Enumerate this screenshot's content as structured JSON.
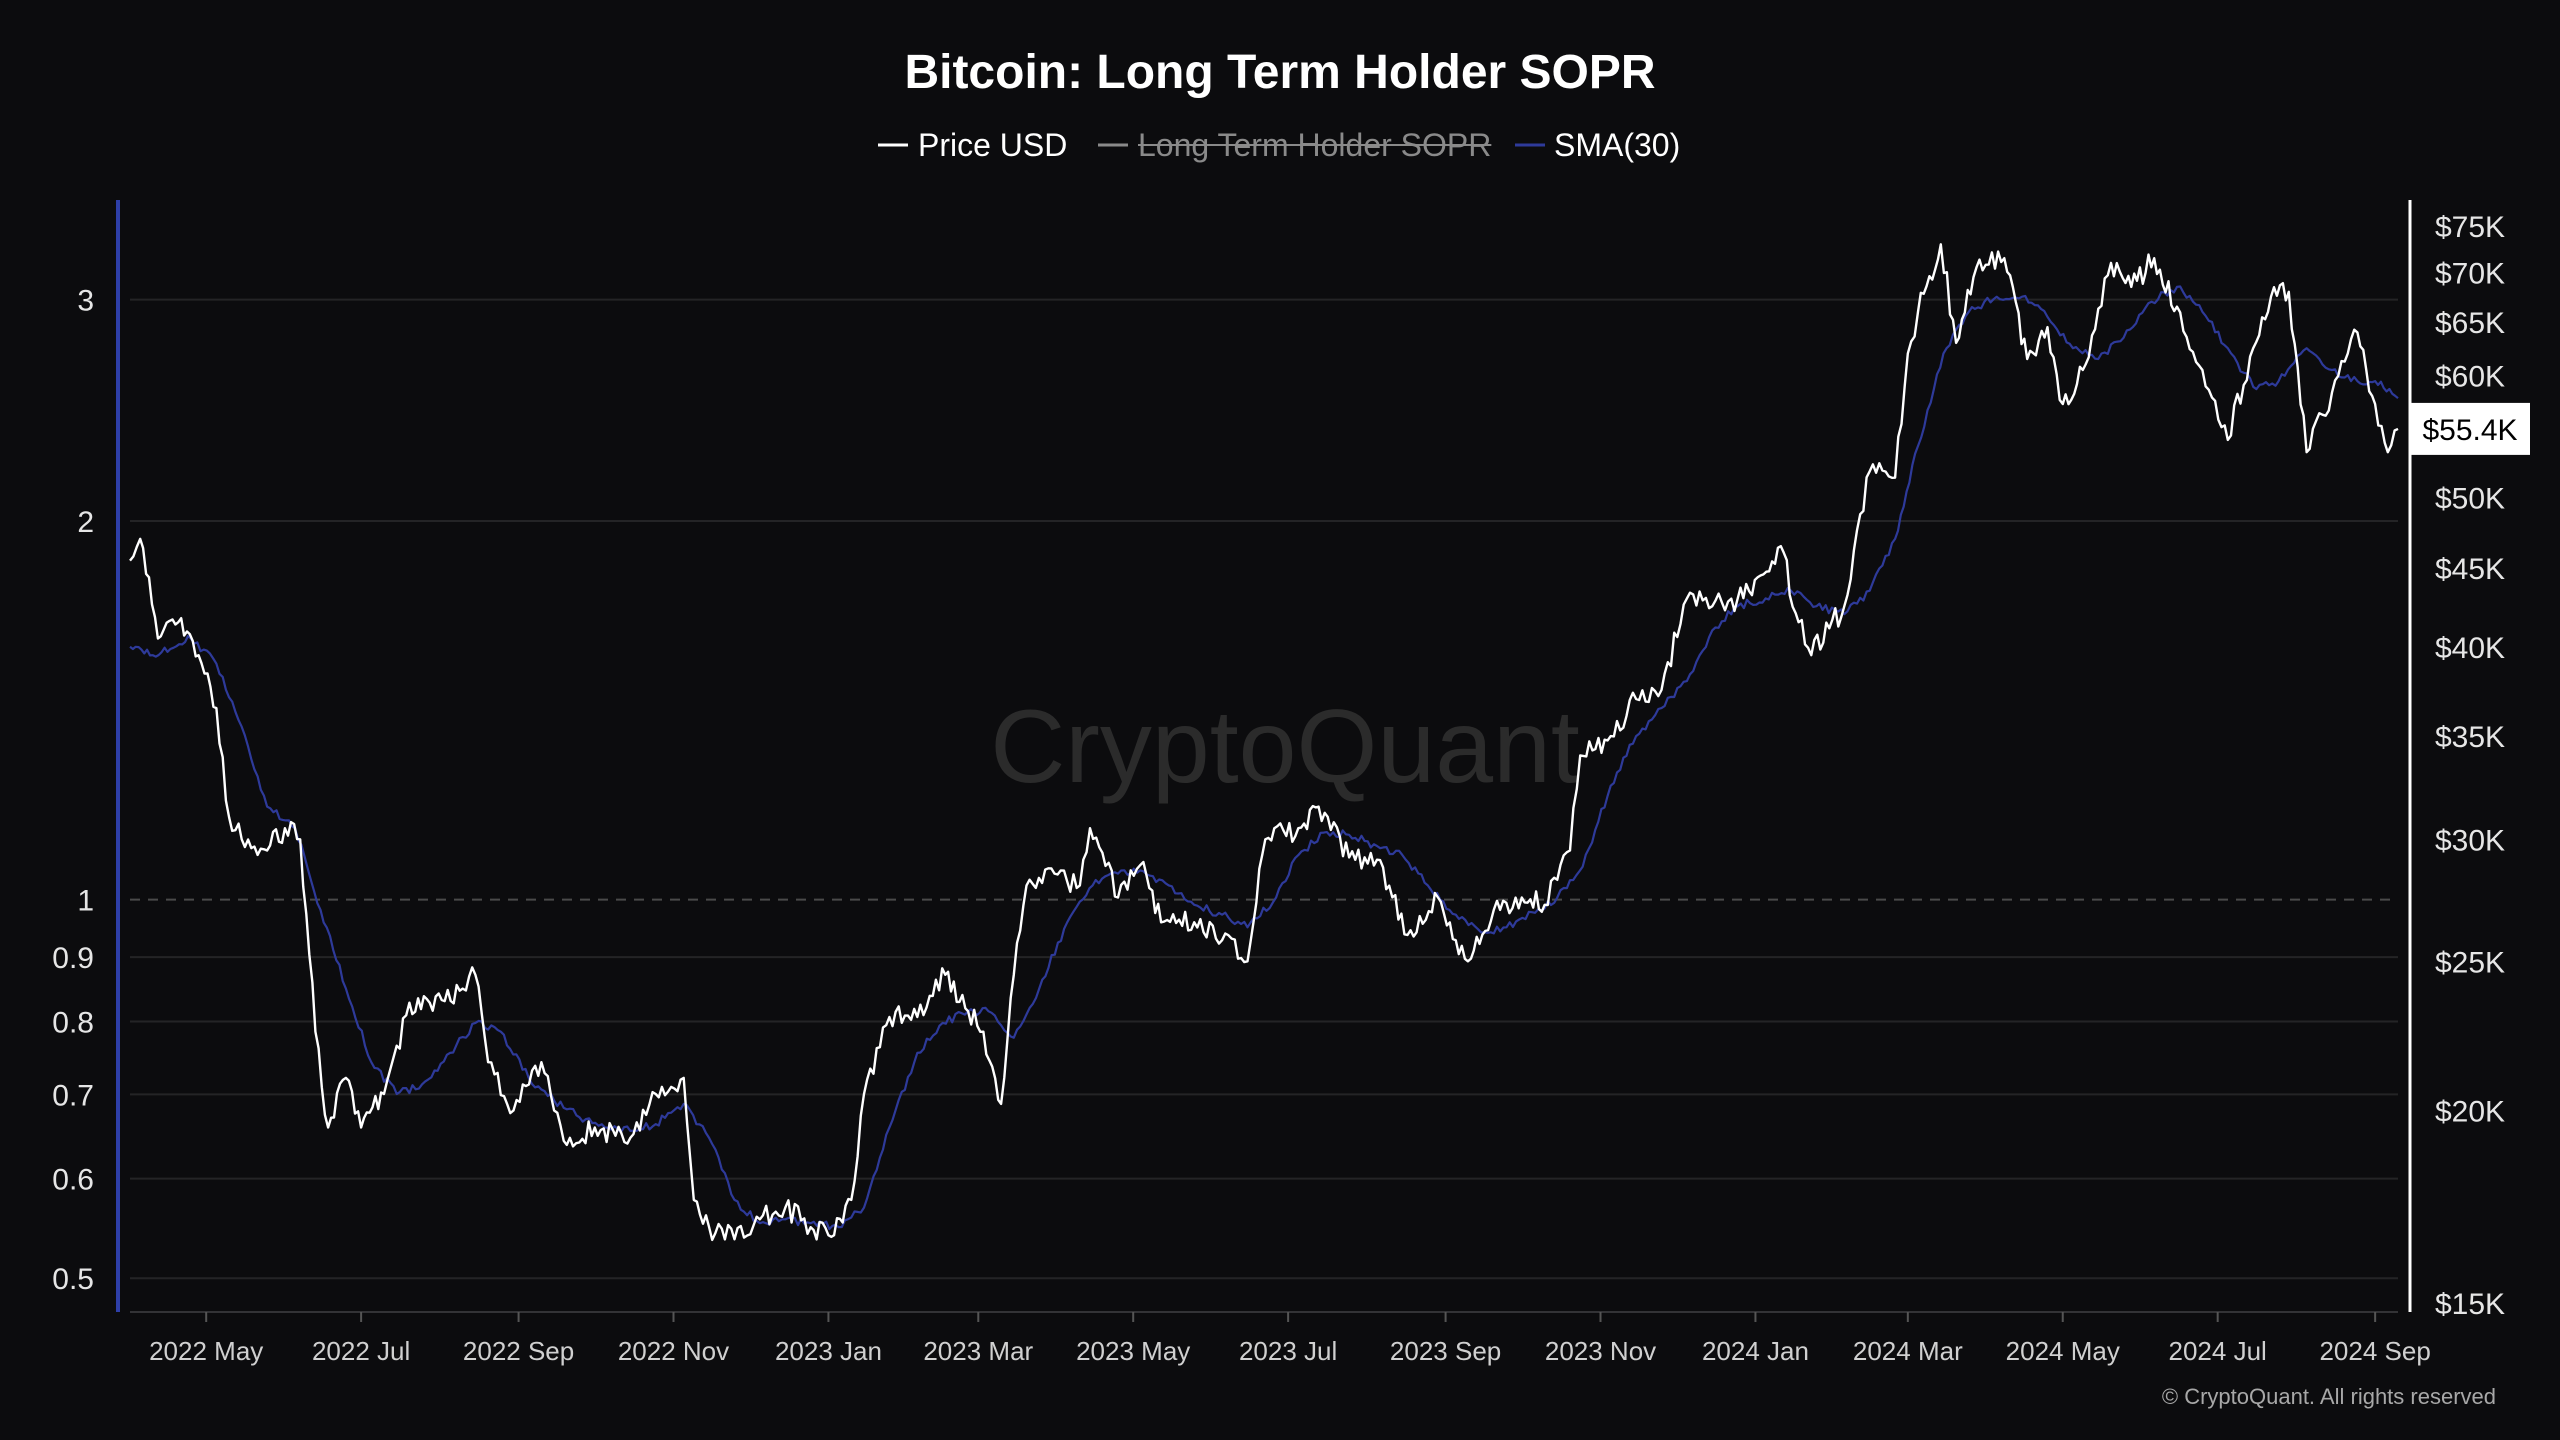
{
  "chart_data": {
    "type": "line",
    "title": "Bitcoin: Long Term Holder SOPR",
    "legend": [
      {
        "label": "Price USD",
        "color": "#ffffff",
        "enabled": true
      },
      {
        "label": "Long Term Holder SOPR",
        "color": "#8a8a8a",
        "enabled": false
      },
      {
        "label": "SMA(30)",
        "color": "#2e3a9a",
        "enabled": true
      }
    ],
    "legend_position": "top-center",
    "watermark": "CryptoQuant",
    "copyright": "© CryptoQuant. All rights reserved",
    "x_ticks": [
      "2022 May",
      "2022 Jul",
      "2022 Sep",
      "2022 Nov",
      "2023 Jan",
      "2023 Mar",
      "2023 May",
      "2023 Jul",
      "2023 Sep",
      "2023 Nov",
      "2024 Jan",
      "2024 Mar",
      "2024 May",
      "2024 Jul",
      "2024 Sep"
    ],
    "x_range": [
      "2022-04-01",
      "2024-09-10"
    ],
    "left_axis": {
      "scale": "log",
      "range": [
        0.47,
        3.6
      ],
      "ticks": [
        {
          "value": 3,
          "label": "3"
        },
        {
          "value": 2,
          "label": "2"
        },
        {
          "value": 1,
          "label": "1"
        },
        {
          "value": 0.9,
          "label": "0.9"
        },
        {
          "value": 0.8,
          "label": "0.8"
        },
        {
          "value": 0.7,
          "label": "0.7"
        },
        {
          "value": 0.6,
          "label": "0.6"
        },
        {
          "value": 0.5,
          "label": "0.5"
        }
      ],
      "reference_line": 1
    },
    "right_axis": {
      "scale": "log",
      "range": [
        14800,
        78000
      ],
      "ticks": [
        {
          "value": 75000,
          "label": "$75K"
        },
        {
          "value": 70000,
          "label": "$70K"
        },
        {
          "value": 65000,
          "label": "$65K"
        },
        {
          "value": 60000,
          "label": "$60K"
        },
        {
          "value": 50000,
          "label": "$50K"
        },
        {
          "value": 45000,
          "label": "$45K"
        },
        {
          "value": 40000,
          "label": "$40K"
        },
        {
          "value": 35000,
          "label": "$35K"
        },
        {
          "value": 30000,
          "label": "$30K"
        },
        {
          "value": 25000,
          "label": "$25K"
        },
        {
          "value": 20000,
          "label": "$20K"
        },
        {
          "value": 15000,
          "label": "$15K"
        }
      ],
      "current_value_label": "$55.4K"
    },
    "grid": true,
    "series": [
      {
        "name": "Price USD",
        "axis": "right",
        "color": "#ffffff",
        "points": [
          [
            "2022-04-01",
            45500
          ],
          [
            "2022-04-05",
            47000
          ],
          [
            "2022-04-12",
            40500
          ],
          [
            "2022-04-20",
            41500
          ],
          [
            "2022-04-28",
            39500
          ],
          [
            "2022-05-05",
            36500
          ],
          [
            "2022-05-10",
            31000
          ],
          [
            "2022-05-15",
            30000
          ],
          [
            "2022-05-25",
            29500
          ],
          [
            "2022-06-01",
            30500
          ],
          [
            "2022-06-07",
            30000
          ],
          [
            "2022-06-13",
            22500
          ],
          [
            "2022-06-18",
            19500
          ],
          [
            "2022-06-25",
            21000
          ],
          [
            "2022-07-01",
            19500
          ],
          [
            "2022-07-10",
            20500
          ],
          [
            "2022-07-20",
            23500
          ],
          [
            "2022-07-28",
            23500
          ],
          [
            "2022-08-10",
            24000
          ],
          [
            "2022-08-15",
            24500
          ],
          [
            "2022-08-20",
            21500
          ],
          [
            "2022-08-30",
            20000
          ],
          [
            "2022-09-10",
            21500
          ],
          [
            "2022-09-15",
            20000
          ],
          [
            "2022-09-20",
            19000
          ],
          [
            "2022-10-01",
            19500
          ],
          [
            "2022-10-15",
            19200
          ],
          [
            "2022-10-25",
            20500
          ],
          [
            "2022-11-05",
            21000
          ],
          [
            "2022-11-09",
            17500
          ],
          [
            "2022-11-15",
            16800
          ],
          [
            "2022-11-25",
            16500
          ],
          [
            "2022-12-05",
            17000
          ],
          [
            "2022-12-15",
            17300
          ],
          [
            "2022-12-25",
            16800
          ],
          [
            "2023-01-01",
            16600
          ],
          [
            "2023-01-10",
            17500
          ],
          [
            "2023-01-15",
            20500
          ],
          [
            "2023-01-25",
            23000
          ],
          [
            "2023-02-05",
            23000
          ],
          [
            "2023-02-16",
            24500
          ],
          [
            "2023-02-25",
            23200
          ],
          [
            "2023-03-03",
            22500
          ],
          [
            "2023-03-10",
            20200
          ],
          [
            "2023-03-15",
            24500
          ],
          [
            "2023-03-20",
            28000
          ],
          [
            "2023-03-31",
            28500
          ],
          [
            "2023-04-10",
            28000
          ],
          [
            "2023-04-14",
            30500
          ],
          [
            "2023-04-25",
            27500
          ],
          [
            "2023-05-05",
            29000
          ],
          [
            "2023-05-12",
            26500
          ],
          [
            "2023-05-25",
            26500
          ],
          [
            "2023-06-05",
            25800
          ],
          [
            "2023-06-15",
            25000
          ],
          [
            "2023-06-22",
            30000
          ],
          [
            "2023-07-05",
            30500
          ],
          [
            "2023-07-13",
            31500
          ],
          [
            "2023-07-25",
            29200
          ],
          [
            "2023-08-05",
            29100
          ],
          [
            "2023-08-17",
            26000
          ],
          [
            "2023-08-29",
            27500
          ],
          [
            "2023-09-05",
            25800
          ],
          [
            "2023-09-11",
            25100
          ],
          [
            "2023-09-20",
            27000
          ],
          [
            "2023-10-01",
            27500
          ],
          [
            "2023-10-10",
            27200
          ],
          [
            "2023-10-20",
            29500
          ],
          [
            "2023-10-24",
            34000
          ],
          [
            "2023-11-05",
            35000
          ],
          [
            "2023-11-15",
            37000
          ],
          [
            "2023-11-25",
            37500
          ],
          [
            "2023-12-05",
            43000
          ],
          [
            "2023-12-15",
            42500
          ],
          [
            "2023-12-25",
            43000
          ],
          [
            "2024-01-03",
            44500
          ],
          [
            "2024-01-11",
            46500
          ],
          [
            "2024-01-18",
            41500
          ],
          [
            "2024-01-23",
            39500
          ],
          [
            "2024-02-05",
            42500
          ],
          [
            "2024-02-15",
            52000
          ],
          [
            "2024-02-25",
            51500
          ],
          [
            "2024-03-01",
            62000
          ],
          [
            "2024-03-05",
            66000
          ],
          [
            "2024-03-14",
            73000
          ],
          [
            "2024-03-20",
            63000
          ],
          [
            "2024-03-28",
            70500
          ],
          [
            "2024-04-08",
            71500
          ],
          [
            "2024-04-17",
            61500
          ],
          [
            "2024-04-25",
            64500
          ],
          [
            "2024-05-01",
            57500
          ],
          [
            "2024-05-10",
            61000
          ],
          [
            "2024-05-20",
            71000
          ],
          [
            "2024-05-28",
            68500
          ],
          [
            "2024-06-06",
            71500
          ],
          [
            "2024-06-15",
            66500
          ],
          [
            "2024-06-25",
            60500
          ],
          [
            "2024-07-05",
            54500
          ],
          [
            "2024-07-15",
            62500
          ],
          [
            "2024-07-22",
            67500
          ],
          [
            "2024-07-29",
            68000
          ],
          [
            "2024-08-05",
            53500
          ],
          [
            "2024-08-15",
            58500
          ],
          [
            "2024-08-25",
            64000
          ],
          [
            "2024-09-01",
            57500
          ],
          [
            "2024-09-06",
            53500
          ],
          [
            "2024-09-10",
            55400
          ]
        ]
      },
      {
        "name": "SMA(30)",
        "axis": "right",
        "color": "#2e3a9a",
        "points": [
          [
            "2022-04-01",
            40000
          ],
          [
            "2022-04-10",
            39500
          ],
          [
            "2022-04-25",
            40500
          ],
          [
            "2022-05-05",
            39000
          ],
          [
            "2022-05-15",
            35500
          ],
          [
            "2022-05-25",
            31500
          ],
          [
            "2022-06-05",
            30500
          ],
          [
            "2022-06-15",
            27000
          ],
          [
            "2022-06-25",
            24000
          ],
          [
            "2022-07-05",
            21500
          ],
          [
            "2022-07-15",
            20500
          ],
          [
            "2022-07-25",
            20800
          ],
          [
            "2022-08-05",
            21800
          ],
          [
            "2022-08-15",
            22800
          ],
          [
            "2022-08-25",
            22500
          ],
          [
            "2022-09-05",
            21000
          ],
          [
            "2022-09-15",
            20300
          ],
          [
            "2022-09-25",
            19800
          ],
          [
            "2022-10-05",
            19500
          ],
          [
            "2022-10-15",
            19400
          ],
          [
            "2022-10-25",
            19600
          ],
          [
            "2022-11-05",
            20200
          ],
          [
            "2022-11-15",
            19200
          ],
          [
            "2022-11-25",
            17500
          ],
          [
            "2022-12-05",
            16900
          ],
          [
            "2022-12-15",
            17000
          ],
          [
            "2022-12-25",
            16900
          ],
          [
            "2023-01-05",
            16800
          ],
          [
            "2023-01-15",
            17300
          ],
          [
            "2023-01-25",
            19500
          ],
          [
            "2023-02-05",
            21800
          ],
          [
            "2023-02-15",
            22800
          ],
          [
            "2023-02-25",
            23200
          ],
          [
            "2023-03-05",
            23200
          ],
          [
            "2023-03-15",
            22300
          ],
          [
            "2023-03-25",
            24000
          ],
          [
            "2023-04-05",
            26500
          ],
          [
            "2023-04-15",
            28000
          ],
          [
            "2023-04-25",
            28500
          ],
          [
            "2023-05-05",
            28600
          ],
          [
            "2023-05-15",
            28000
          ],
          [
            "2023-05-25",
            27200
          ],
          [
            "2023-06-05",
            26800
          ],
          [
            "2023-06-15",
            26300
          ],
          [
            "2023-06-25",
            27300
          ],
          [
            "2023-07-05",
            29300
          ],
          [
            "2023-07-15",
            30300
          ],
          [
            "2023-07-25",
            30200
          ],
          [
            "2023-08-05",
            29700
          ],
          [
            "2023-08-15",
            29300
          ],
          [
            "2023-08-25",
            28000
          ],
          [
            "2023-09-05",
            26800
          ],
          [
            "2023-09-15",
            26100
          ],
          [
            "2023-09-25",
            26300
          ],
          [
            "2023-10-05",
            26900
          ],
          [
            "2023-10-15",
            27500
          ],
          [
            "2023-10-25",
            28800
          ],
          [
            "2023-11-05",
            32500
          ],
          [
            "2023-11-15",
            35000
          ],
          [
            "2023-11-25",
            36500
          ],
          [
            "2023-12-05",
            38000
          ],
          [
            "2023-12-15",
            41000
          ],
          [
            "2023-12-25",
            42500
          ],
          [
            "2024-01-05",
            43000
          ],
          [
            "2024-01-15",
            43500
          ],
          [
            "2024-01-25",
            42500
          ],
          [
            "2024-02-05",
            42000
          ],
          [
            "2024-02-15",
            43500
          ],
          [
            "2024-02-25",
            47000
          ],
          [
            "2024-03-05",
            54000
          ],
          [
            "2024-03-15",
            62000
          ],
          [
            "2024-03-25",
            66000
          ],
          [
            "2024-04-05",
            67500
          ],
          [
            "2024-04-15",
            67500
          ],
          [
            "2024-04-25",
            65500
          ],
          [
            "2024-05-05",
            62500
          ],
          [
            "2024-05-15",
            61500
          ],
          [
            "2024-05-25",
            63500
          ],
          [
            "2024-06-05",
            67000
          ],
          [
            "2024-06-15",
            68500
          ],
          [
            "2024-06-25",
            66000
          ],
          [
            "2024-07-05",
            62500
          ],
          [
            "2024-07-15",
            59000
          ],
          [
            "2024-07-25",
            59500
          ],
          [
            "2024-08-05",
            62500
          ],
          [
            "2024-08-15",
            60500
          ],
          [
            "2024-08-25",
            59500
          ],
          [
            "2024-09-01",
            59500
          ],
          [
            "2024-09-10",
            58000
          ]
        ]
      }
    ]
  }
}
